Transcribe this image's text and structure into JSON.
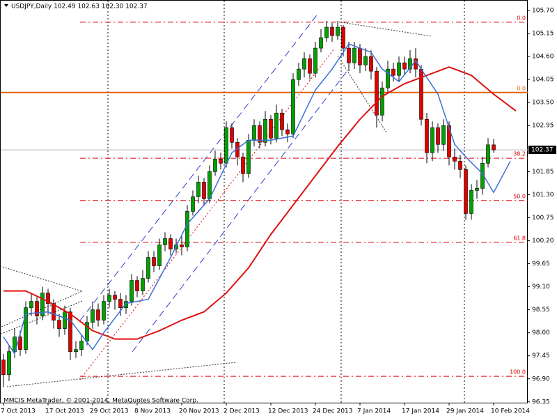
{
  "chart_data": {
    "type": "candlestick",
    "title": "USDJPY,Daily  102.49 102.63 102.30 102.37",
    "footer": "MMCIS MetaTrader, © 2001-2014, MetaQuotes Software Corp.",
    "categories": [
      "7 Oct 2013",
      null,
      null,
      null,
      null,
      null,
      null,
      null,
      "17 Oct 2013",
      null,
      null,
      null,
      null,
      null,
      null,
      null,
      "29 Oct 2013",
      null,
      null,
      null,
      null,
      null,
      null,
      null,
      "8 Nov 2013",
      null,
      null,
      null,
      null,
      null,
      null,
      null,
      "20 Nov 2013",
      null,
      null,
      null,
      null,
      null,
      null,
      null,
      "2 Dec 2013",
      null,
      null,
      null,
      null,
      null,
      null,
      null,
      "12 Dec 2013",
      null,
      null,
      null,
      null,
      null,
      null,
      null,
      "24 Dec 2013",
      null,
      null,
      null,
      null,
      null,
      null,
      null,
      "7 Jan 2014",
      null,
      null,
      null,
      null,
      null,
      null,
      null,
      "17 Jan 2014",
      null,
      null,
      null,
      null,
      null,
      null,
      null,
      "29 Jan 2014",
      null,
      null,
      null,
      null,
      null,
      null,
      null,
      "10 Feb 2014"
    ],
    "open": [
      97.35,
      97.0,
      97.55,
      97.9,
      97.6,
      98.6,
      98.75,
      98.4,
      98.95,
      98.7,
      98.3,
      98.1,
      98.5,
      97.55,
      97.6,
      97.8,
      98.25,
      98.55,
      98.3,
      98.75,
      98.9,
      98.8,
      98.6,
      98.75,
      99.25,
      99.0,
      99.3,
      99.8,
      99.6,
      100.1,
      100.25,
      100.0,
      100.1,
      100.05,
      100.9,
      101.25,
      101.6,
      101.2,
      101.85,
      102.15,
      102.05,
      102.9,
      102.55,
      102.2,
      101.8,
      102.6,
      102.95,
      102.55,
      103.1,
      102.65,
      103.25,
      102.85,
      102.75,
      104.05,
      104.3,
      104.55,
      104.2,
      104.8,
      105.05,
      105.3,
      105.1,
      105.3,
      104.8,
      104.45,
      104.8,
      104.4,
      104.6,
      104.25,
      103.2,
      103.85,
      104.3,
      104.15,
      104.45,
      104.3,
      104.55,
      104.3,
      103.1,
      102.3,
      102.9,
      102.5,
      102.95,
      102.2,
      102.1,
      101.9,
      100.85,
      101.4,
      101.45,
      102.05,
      102.49
    ],
    "high": [
      97.5,
      97.7,
      98.1,
      98.05,
      98.75,
      98.95,
      98.85,
      99.1,
      99.05,
      98.8,
      98.45,
      98.65,
      98.6,
      97.8,
      97.95,
      98.4,
      98.75,
      98.7,
      98.9,
      99.05,
      99.0,
      98.95,
      98.9,
      99.4,
      99.35,
      99.5,
      99.95,
      99.95,
      100.25,
      100.4,
      100.35,
      100.25,
      100.3,
      101.05,
      101.4,
      101.75,
      101.7,
      102.0,
      102.35,
      102.3,
      103.05,
      103.0,
      102.65,
      102.3,
      102.75,
      103.1,
      103.05,
      103.3,
      103.2,
      103.45,
      103.35,
      103.0,
      104.2,
      104.45,
      104.7,
      104.65,
      104.95,
      105.25,
      105.45,
      105.4,
      105.45,
      105.35,
      104.95,
      104.95,
      104.9,
      104.8,
      104.75,
      104.35,
      104.0,
      104.5,
      104.45,
      104.6,
      104.6,
      104.75,
      104.8,
      104.4,
      103.25,
      103.05,
      103.0,
      103.1,
      103.05,
      102.4,
      102.25,
      102.0,
      101.55,
      101.65,
      102.2,
      102.65,
      102.63
    ],
    "low": [
      96.7,
      96.85,
      97.4,
      97.45,
      97.5,
      98.4,
      98.2,
      98.3,
      98.45,
      98.1,
      97.9,
      97.95,
      97.35,
      97.4,
      97.45,
      97.7,
      98.1,
      98.15,
      98.2,
      98.6,
      98.55,
      98.4,
      98.45,
      98.65,
      98.85,
      98.9,
      99.2,
      99.45,
      99.5,
      99.95,
      99.85,
      99.9,
      99.85,
      99.95,
      100.8,
      101.1,
      101.05,
      101.1,
      101.75,
      101.9,
      101.95,
      102.4,
      102.0,
      101.6,
      101.7,
      102.45,
      102.4,
      102.45,
      102.5,
      102.55,
      102.7,
      102.55,
      102.65,
      103.9,
      104.1,
      104.05,
      104.1,
      104.7,
      104.95,
      104.95,
      105.0,
      104.6,
      104.25,
      104.3,
      104.2,
      104.25,
      104.05,
      102.9,
      103.05,
      103.7,
      104.0,
      104.0,
      104.15,
      104.2,
      104.1,
      102.95,
      102.05,
      102.1,
      102.3,
      102.35,
      102.0,
      101.9,
      101.7,
      100.7,
      100.7,
      101.2,
      101.3,
      101.95,
      102.3
    ],
    "close": [
      97.0,
      97.55,
      97.9,
      97.6,
      98.6,
      98.75,
      98.4,
      98.95,
      98.7,
      98.3,
      98.1,
      98.5,
      97.55,
      97.6,
      97.8,
      98.25,
      98.55,
      98.3,
      98.75,
      98.9,
      98.8,
      98.6,
      98.75,
      99.25,
      99.0,
      99.3,
      99.8,
      99.6,
      100.1,
      100.25,
      100.0,
      100.1,
      100.05,
      100.9,
      101.25,
      101.6,
      101.2,
      101.85,
      102.15,
      102.05,
      102.9,
      102.55,
      102.2,
      101.8,
      102.6,
      102.95,
      102.55,
      103.1,
      102.65,
      103.25,
      102.85,
      102.75,
      104.05,
      104.3,
      104.55,
      104.2,
      104.8,
      105.05,
      105.3,
      105.1,
      105.3,
      104.8,
      104.45,
      104.8,
      104.4,
      104.6,
      104.25,
      103.2,
      103.85,
      104.3,
      104.15,
      104.45,
      104.3,
      104.55,
      104.3,
      103.1,
      102.3,
      102.9,
      102.5,
      102.95,
      102.2,
      102.1,
      101.9,
      100.85,
      101.4,
      101.45,
      102.05,
      102.49,
      102.37
    ],
    "up_color": "#00a000",
    "down_color": "#e00000",
    "series": [
      {
        "color": "#e01010",
        "x": [
          0,
          4,
          8,
          12,
          16,
          20,
          24,
          28,
          32,
          36,
          40,
          44,
          48,
          52,
          56,
          60,
          64,
          68,
          72,
          76,
          80,
          84,
          88,
          92
        ],
        "values": [
          99.0,
          99.0,
          98.75,
          98.45,
          98.05,
          97.85,
          97.85,
          98.05,
          98.3,
          98.5,
          98.95,
          99.55,
          100.35,
          101.05,
          101.75,
          102.45,
          103.1,
          103.65,
          103.95,
          104.15,
          104.35,
          104.15,
          103.7,
          103.3
        ]
      },
      {
        "color": "#3a6fd8",
        "x": [
          0,
          2,
          4,
          8,
          12,
          16,
          18,
          22,
          26,
          30,
          33,
          37,
          41,
          44,
          48,
          52,
          56,
          59,
          62,
          66,
          68,
          71,
          74,
          78,
          81,
          83,
          86,
          88,
          91
        ],
        "values": [
          97.9,
          97.5,
          98.45,
          98.5,
          98.3,
          97.6,
          98.0,
          98.7,
          98.8,
          99.8,
          100.6,
          101.2,
          102.3,
          102.6,
          102.6,
          102.7,
          103.8,
          104.3,
          104.9,
          104.7,
          104.3,
          104.0,
          104.5,
          103.7,
          102.5,
          102.2,
          101.8,
          101.35,
          102.1
        ]
      }
    ],
    "levels": [
      {
        "label": "0.0",
        "value": 105.42,
        "color": "#e00000",
        "style": "dashdot"
      },
      {
        "label": "0.0",
        "value": 103.74,
        "color": "#e06000",
        "style": "solid"
      },
      {
        "label": "38.2",
        "value": 102.17,
        "color": "#e00000",
        "style": "dashdot"
      },
      {
        "label": "50.0",
        "value": 101.16,
        "color": "#e00000",
        "style": "dashdot"
      },
      {
        "label": "61.8",
        "value": 100.16,
        "color": "#e00000",
        "style": "dashdot"
      },
      {
        "label": "100.0",
        "value": 96.96,
        "color": "#e00000",
        "style": "dashdot"
      }
    ],
    "last_price": 102.37,
    "ylim": [
      96.33,
      105.95
    ],
    "yticks": [
      {
        "value": 105.7,
        "label": "105.70"
      },
      105.15,
      {
        "value": 104.6,
        "label": "104.60"
      },
      104.05,
      {
        "value": 103.5,
        "label": "103.50"
      },
      102.95,
      101.85,
      {
        "value": 101.3,
        "label": "101.30"
      },
      100.75,
      {
        "value": 100.2,
        "label": "100.20"
      },
      99.65,
      {
        "value": 99.1,
        "label": "99.10"
      },
      98.55,
      {
        "value": 98.0,
        "label": "98.00"
      },
      97.45,
      {
        "value": 96.9,
        "label": "96.90"
      },
      96.35
    ]
  }
}
